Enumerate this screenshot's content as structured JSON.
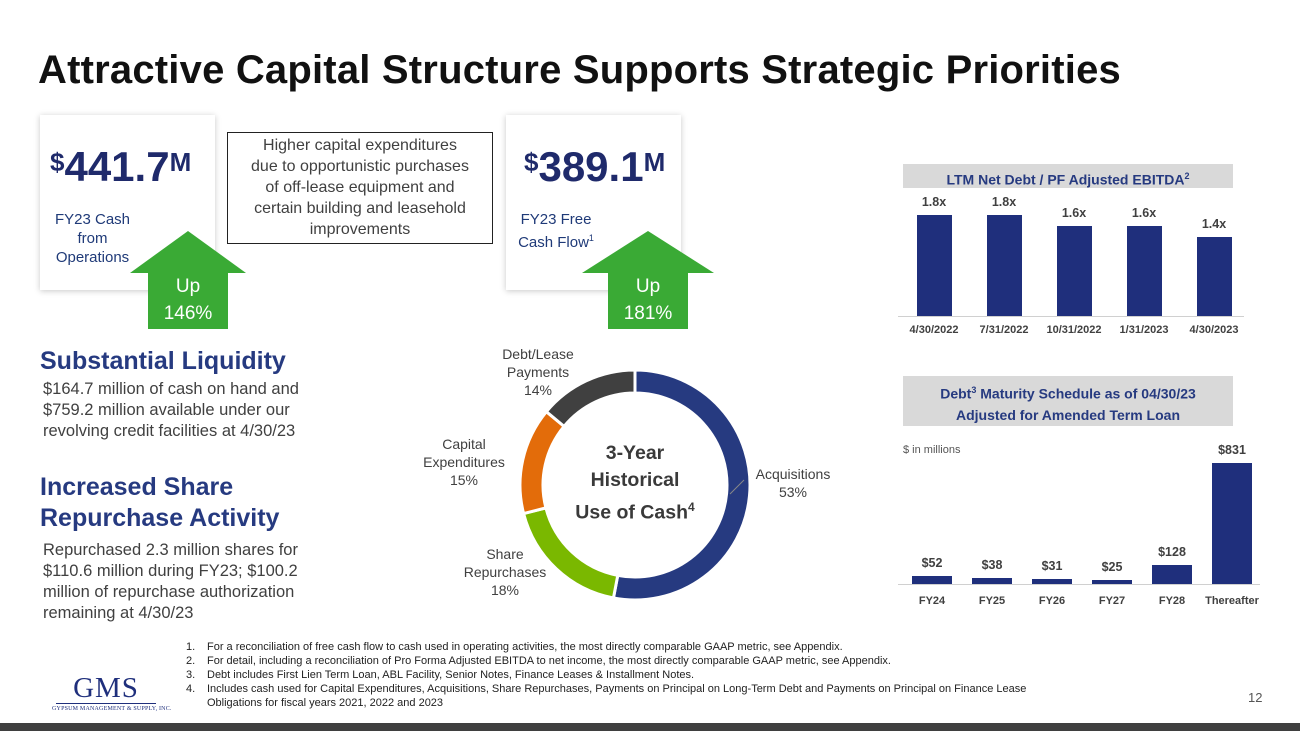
{
  "title": "Attractive Capital Structure Supports Strategic Priorities",
  "kpis": [
    {
      "symbol": "$",
      "number": "441.7",
      "unit": "M",
      "label_lines": [
        "FY23 Cash",
        "from",
        "Operations"
      ],
      "arrow_lines": [
        "Up",
        "146%"
      ]
    },
    {
      "symbol": "$",
      "number": "389.1",
      "unit": "M",
      "label_line1": "FY23 Free",
      "label_line2": "Cash Flow",
      "label_sup": "1",
      "arrow_lines": [
        "Up",
        "181%"
      ]
    }
  ],
  "note_box": [
    "Higher capital expenditures",
    "due to opportunistic purchases",
    "of off-lease equipment and",
    "certain building and leasehold",
    "improvements"
  ],
  "liquidity": {
    "heading": "Substantial Liquidity",
    "lines": [
      "$164.7 million of cash on hand and",
      "$759.2 million available under our",
      "revolving credit facilities at 4/30/23"
    ]
  },
  "repurchase": {
    "heading_lines": [
      "Increased Share",
      "Repurchase Activity"
    ],
    "lines": [
      "Repurchased 2.3 million shares for",
      "$110.6 million during FY23; $100.2",
      "million of repurchase authorization",
      "remaining at 4/30/23"
    ]
  },
  "donut_center": {
    "line1": "3-Year",
    "line2": "Historical",
    "line3": "Use of Cash",
    "sup": "4"
  },
  "chart_data": [
    {
      "type": "pie",
      "style": "donut",
      "slices": [
        {
          "label_lines": [
            "Acquisitions",
            "53%"
          ],
          "value": 53,
          "color": "#263a80"
        },
        {
          "label_lines": [
            "Share",
            "Repurchases",
            "18%"
          ],
          "value": 18,
          "color": "#7ab800"
        },
        {
          "label_lines": [
            "Capital",
            "Expenditures",
            "15%"
          ],
          "value": 15,
          "color": "#e36c0a"
        },
        {
          "label_lines": [
            "Debt/Lease",
            "Payments",
            "14%"
          ],
          "value": 14,
          "color": "#404040"
        }
      ]
    },
    {
      "type": "bar",
      "title": "LTM Net Debt / PF Adjusted EBITDA",
      "title_sup": "2",
      "categories": [
        "4/30/2022",
        "7/31/2022",
        "10/31/2022",
        "1/31/2023",
        "4/30/2023"
      ],
      "values": [
        1.8,
        1.8,
        1.6,
        1.6,
        1.4
      ],
      "value_labels": [
        "1.8x",
        "1.8x",
        "1.6x",
        "1.6x",
        "1.4x"
      ],
      "color": "#1f2f7c"
    },
    {
      "type": "bar",
      "title_part1": "Debt",
      "title_sup": "3",
      "title_part2": " Maturity Schedule as of 04/30/23",
      "title_line2": "Adjusted for Amended Term Loan",
      "unit_note": "$ in millions",
      "categories": [
        "FY24",
        "FY25",
        "FY26",
        "FY27",
        "FY28",
        "Thereafter"
      ],
      "values": [
        52,
        38,
        31,
        25,
        128,
        831
      ],
      "value_labels": [
        "$52",
        "$38",
        "$31",
        "$25",
        "$128",
        "$831"
      ],
      "color": "#1f2f7c"
    }
  ],
  "footnotes": [
    {
      "n": "1.",
      "lines": [
        "For a reconciliation of free cash flow to cash used in operating activities, the most directly comparable GAAP metric, see Appendix."
      ]
    },
    {
      "n": "2.",
      "lines": [
        "For detail, including a reconciliation of Pro Forma Adjusted EBITDA to net income, the most directly comparable GAAP metric, see Appendix."
      ]
    },
    {
      "n": "3.",
      "lines": [
        "Debt includes First Lien Term Loan, ABL Facility, Senior Notes, Finance Leases & Installment Notes."
      ]
    },
    {
      "n": "4.",
      "lines": [
        "Includes cash used for Capital Expenditures, Acquisitions, Share Repurchases, Payments on Principal on Long-Term Debt and Payments on Principal on Finance Lease",
        "Obligations for fiscal years 2021, 2022 and 2023"
      ]
    }
  ],
  "logo": {
    "main": "GMS",
    "sub": "GYPSUM MANAGEMENT & SUPPLY, INC."
  },
  "page_number": "12"
}
